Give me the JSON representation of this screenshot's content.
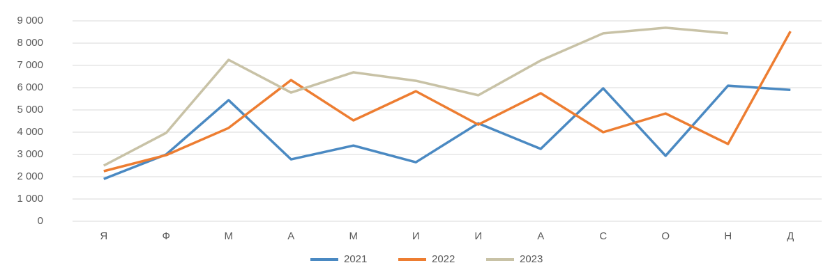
{
  "chart_data": {
    "type": "line",
    "categories": [
      "Я",
      "Ф",
      "М",
      "А",
      "М",
      "И",
      "И",
      "А",
      "С",
      "О",
      "Н",
      "Д"
    ],
    "series": [
      {
        "name": "2021",
        "color": "#4a89c2",
        "values": [
          1900,
          3000,
          5440,
          2780,
          3400,
          2650,
          4400,
          3250,
          5970,
          2940,
          6090,
          5900
        ]
      },
      {
        "name": "2022",
        "color": "#ed7d31",
        "values": [
          2250,
          2970,
          4190,
          6340,
          4530,
          5840,
          4340,
          5750,
          4000,
          4840,
          3470,
          8530
        ]
      },
      {
        "name": "2023",
        "color": "#c8c2a6",
        "values": [
          2500,
          3970,
          7250,
          5780,
          6690,
          6310,
          5660,
          7220,
          8440,
          8690,
          8440,
          null
        ]
      }
    ],
    "ylim": [
      0,
      9000
    ],
    "yticks": [
      0,
      {
        "value": 1000,
        "label": "1 000"
      },
      {
        "value": 2000,
        "label": "2 000"
      },
      {
        "value": 3000,
        "label": "3 000"
      },
      {
        "value": 4000,
        "label": "4 000"
      },
      {
        "value": 5000,
        "label": "5 000"
      },
      {
        "value": 6000,
        "label": "6 000"
      },
      {
        "value": 7000,
        "label": "7 000"
      },
      {
        "value": 8000,
        "label": "8 000"
      },
      {
        "value": 9000,
        "label": "9 000"
      }
    ],
    "grid": true,
    "legend": "bottom"
  }
}
